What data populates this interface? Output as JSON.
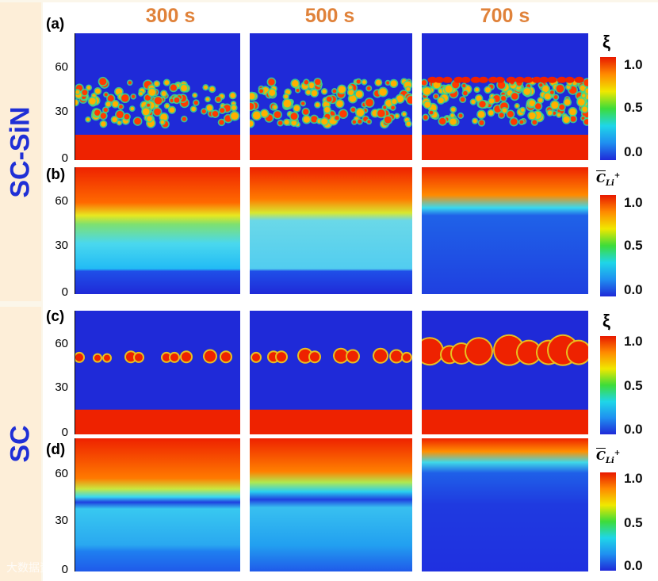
{
  "columns": [
    "300 s",
    "500 s",
    "700 s"
  ],
  "groups": [
    {
      "label": "SC-SiN",
      "panels": [
        "(a)",
        "(b)"
      ]
    },
    {
      "label": "SC",
      "panels": [
        "(c)",
        "(d)"
      ]
    }
  ],
  "y_ticks": [
    "60",
    "30",
    "0"
  ],
  "colorbars": {
    "xi": {
      "title": "ξ",
      "ticks": [
        "1.0",
        "0.5",
        "0.0"
      ]
    },
    "cli": {
      "title_main": "C",
      "title_sub": "Li",
      "title_sup": "+",
      "ticks": [
        "1.0",
        "0.5",
        "0.0"
      ]
    }
  },
  "colors": {
    "red": "#ee2200",
    "blue": "#1f2ad8",
    "cyan": "#38c8f0",
    "title": "#e0823a",
    "side": "#1f2fd6"
  },
  "watermark": "大数据资讯"
}
